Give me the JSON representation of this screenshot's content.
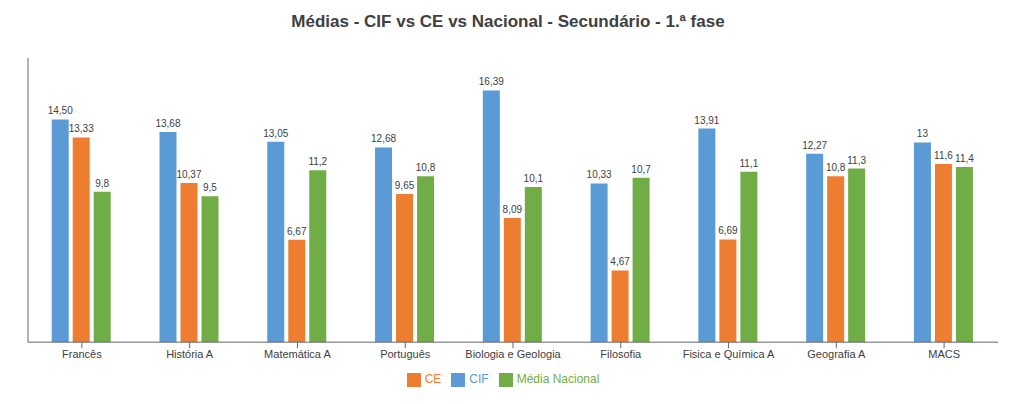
{
  "chart_data": {
    "type": "bar",
    "title": "Médias - CIF vs CE vs Nacional - Secundário - 1.ª fase",
    "categories": [
      "Francês",
      "História A",
      "Matemática A",
      "Português",
      "Biologia e Geologia",
      "Filosofia",
      "Fisica e Química A",
      "Geografia A",
      "MACS"
    ],
    "series": [
      {
        "name": "CIF",
        "color": "#5B9BD5",
        "values": [
          14.5,
          13.68,
          13.05,
          12.68,
          16.39,
          10.33,
          13.91,
          12.27,
          13.0
        ],
        "value_labels": [
          "14,50",
          "13,68",
          "13,05",
          "12,68",
          "16,39",
          "10,33",
          "13,91",
          "12,27",
          "13"
        ]
      },
      {
        "name": "CE",
        "color": "#ED7D31",
        "values": [
          13.33,
          10.37,
          6.67,
          9.65,
          8.09,
          4.67,
          6.69,
          10.8,
          11.6
        ],
        "value_labels": [
          "13,33",
          "10,37",
          "6,67",
          "9,65",
          "8,09",
          "4,67",
          "6,69",
          "10,8",
          "11,6"
        ]
      },
      {
        "name": "Média Nacional",
        "color": "#70AD47",
        "values": [
          9.8,
          9.5,
          11.2,
          10.8,
          10.1,
          10.7,
          11.1,
          11.3,
          11.4
        ],
        "value_labels": [
          "9,8",
          "9,5",
          "11,2",
          "10,8",
          "10,1",
          "10,7",
          "11,1",
          "11,3",
          "11,4"
        ]
      }
    ],
    "ylim": [
      0,
      18.5
    ],
    "yticks": [],
    "grid": false,
    "legend": "bottom",
    "data_labels": true,
    "tick_labels": "x"
  }
}
